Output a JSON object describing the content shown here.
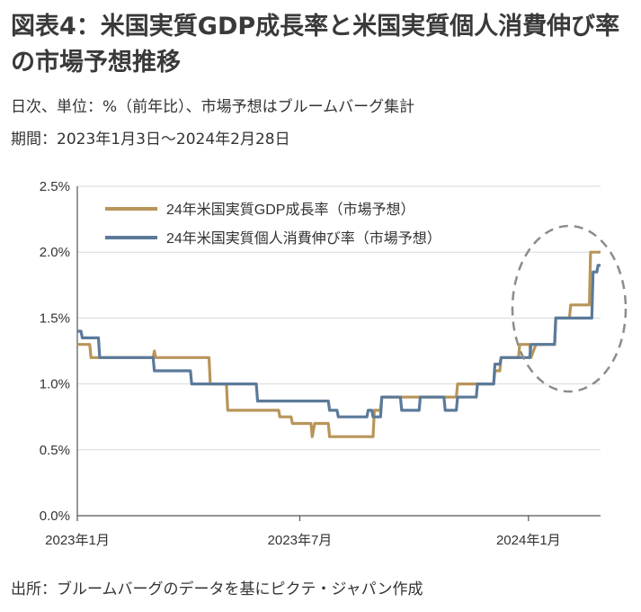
{
  "title": "図表4：米国実質GDP成長率と米国実質個人消費伸び率の市場予想推移",
  "subtitle_unit": "日次、単位：%（前年比）、市場予想はブルームバーグ集計",
  "subtitle_period": "期間：2023年1月3日～2024年2月28日",
  "source": "出所：ブルームバーグのデータを基にピクテ・ジャパン作成",
  "colors": {
    "gdp": "#b8955a",
    "consumption": "#5b7a9a",
    "grid": "#d9d9d9",
    "highlight": "#8c8c8c"
  },
  "chart_data": {
    "type": "line",
    "x_type": "date",
    "x_range": [
      "2023-01-03",
      "2024-02-28"
    ],
    "ylim": [
      0,
      2.5
    ],
    "y_ticks": [
      "0.0%",
      "0.5%",
      "1.0%",
      "1.5%",
      "2.0%",
      "2.5%"
    ],
    "x_ticks": [
      {
        "date": "2023-01-01",
        "label": "2023年1月"
      },
      {
        "date": "2023-07-01",
        "label": "2023年7月"
      },
      {
        "date": "2024-01-01",
        "label": "2024年1月"
      }
    ],
    "grid": "horizontal",
    "legend": "top-left",
    "series": [
      {
        "name": "24年米国実質GDP成長率（市場予想）",
        "color_key": "gdp",
        "points": [
          [
            "2023-01-03",
            1.3
          ],
          [
            "2023-01-13",
            1.3
          ],
          [
            "2023-01-14",
            1.2
          ],
          [
            "2023-03-05",
            1.2
          ],
          [
            "2023-03-06",
            1.25
          ],
          [
            "2023-03-07",
            1.2
          ],
          [
            "2023-04-19",
            1.2
          ],
          [
            "2023-04-20",
            1.0
          ],
          [
            "2023-05-03",
            1.0
          ],
          [
            "2023-05-04",
            0.8
          ],
          [
            "2023-06-14",
            0.8
          ],
          [
            "2023-06-15",
            0.75
          ],
          [
            "2023-06-24",
            0.75
          ],
          [
            "2023-06-25",
            0.7
          ],
          [
            "2023-07-10",
            0.7
          ],
          [
            "2023-07-11",
            0.6
          ],
          [
            "2023-07-13",
            0.7
          ],
          [
            "2023-07-24",
            0.7
          ],
          [
            "2023-07-25",
            0.6
          ],
          [
            "2023-08-29",
            0.6
          ],
          [
            "2023-08-30",
            0.8
          ],
          [
            "2023-09-04",
            0.8
          ],
          [
            "2023-09-05",
            0.9
          ],
          [
            "2023-11-04",
            0.9
          ],
          [
            "2023-11-05",
            1.0
          ],
          [
            "2023-12-04",
            1.0
          ],
          [
            "2023-12-05",
            1.1
          ],
          [
            "2023-12-09",
            1.1
          ],
          [
            "2023-12-10",
            1.2
          ],
          [
            "2023-12-24",
            1.2
          ],
          [
            "2023-12-25",
            1.3
          ],
          [
            "2024-01-02",
            1.3
          ],
          [
            "2024-01-03",
            1.2
          ],
          [
            "2024-01-07",
            1.3
          ],
          [
            "2024-01-22",
            1.3
          ],
          [
            "2024-01-23",
            1.5
          ],
          [
            "2024-02-03",
            1.5
          ],
          [
            "2024-02-04",
            1.6
          ],
          [
            "2024-02-19",
            1.6
          ],
          [
            "2024-02-20",
            2.0
          ],
          [
            "2024-02-28",
            2.0
          ]
        ]
      },
      {
        "name": "24年米国実質個人消費伸び率（市場予想）",
        "color_key": "consumption",
        "points": [
          [
            "2023-01-03",
            1.4
          ],
          [
            "2023-01-06",
            1.4
          ],
          [
            "2023-01-07",
            1.35
          ],
          [
            "2023-01-20",
            1.35
          ],
          [
            "2023-01-21",
            1.2
          ],
          [
            "2023-03-05",
            1.2
          ],
          [
            "2023-03-06",
            1.1
          ],
          [
            "2023-04-04",
            1.1
          ],
          [
            "2023-04-05",
            1.0
          ],
          [
            "2023-05-27",
            1.0
          ],
          [
            "2023-05-28",
            0.87
          ],
          [
            "2023-07-24",
            0.87
          ],
          [
            "2023-07-25",
            0.8
          ],
          [
            "2023-07-31",
            0.8
          ],
          [
            "2023-08-01",
            0.75
          ],
          [
            "2023-08-24",
            0.75
          ],
          [
            "2023-08-25",
            0.8
          ],
          [
            "2023-08-28",
            0.8
          ],
          [
            "2023-08-29",
            0.75
          ],
          [
            "2023-09-04",
            0.75
          ],
          [
            "2023-09-05",
            0.9
          ],
          [
            "2023-09-20",
            0.9
          ],
          [
            "2023-09-21",
            0.8
          ],
          [
            "2023-10-05",
            0.8
          ],
          [
            "2023-10-06",
            0.9
          ],
          [
            "2023-10-25",
            0.9
          ],
          [
            "2023-10-26",
            0.8
          ],
          [
            "2023-11-04",
            0.8
          ],
          [
            "2023-11-05",
            0.9
          ],
          [
            "2023-11-20",
            0.9
          ],
          [
            "2023-11-21",
            1.0
          ],
          [
            "2023-12-04",
            1.0
          ],
          [
            "2023-12-05",
            1.15
          ],
          [
            "2023-12-09",
            1.15
          ],
          [
            "2023-12-10",
            1.2
          ],
          [
            "2023-12-24",
            1.2
          ],
          [
            "2024-01-02",
            1.2
          ],
          [
            "2024-01-03",
            1.3
          ],
          [
            "2024-01-22",
            1.3
          ],
          [
            "2024-01-23",
            1.5
          ],
          [
            "2024-02-21",
            1.5
          ],
          [
            "2024-02-22",
            1.85
          ],
          [
            "2024-02-25",
            1.85
          ],
          [
            "2024-02-26",
            1.9
          ],
          [
            "2024-02-28",
            1.9
          ]
        ]
      }
    ]
  }
}
